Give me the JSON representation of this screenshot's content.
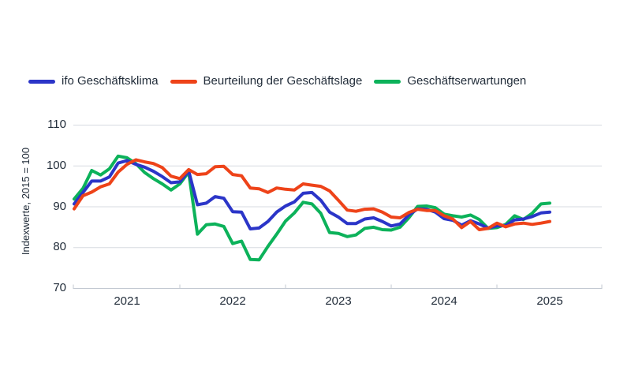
{
  "chart_data": {
    "type": "line",
    "title": "",
    "ylabel": "Indexwerte, 2015 = 100",
    "ylim": [
      70,
      110
    ],
    "yticks": [
      110,
      100,
      90,
      80,
      70
    ],
    "xtick_year_labels": [
      "2021",
      "2022",
      "2023",
      "2024",
      "2025"
    ],
    "grid": "horizontal-only",
    "legend_position": "top-left",
    "background": "#ffffff",
    "text_color": "#222d3a",
    "gridline_color": "#d7dbe1",
    "axis_color": "#c3c9d2",
    "x": [
      "2021-01",
      "2021-02",
      "2021-03",
      "2021-04",
      "2021-05",
      "2021-06",
      "2021-07",
      "2021-08",
      "2021-09",
      "2021-10",
      "2021-11",
      "2021-12",
      "2022-01",
      "2022-02",
      "2022-03",
      "2022-04",
      "2022-05",
      "2022-06",
      "2022-07",
      "2022-08",
      "2022-09",
      "2022-10",
      "2022-11",
      "2022-12",
      "2023-01",
      "2023-02",
      "2023-03",
      "2023-04",
      "2023-05",
      "2023-06",
      "2023-07",
      "2023-08",
      "2023-09",
      "2023-10",
      "2023-11",
      "2023-12",
      "2024-01",
      "2024-02",
      "2024-03",
      "2024-04",
      "2024-05",
      "2024-06",
      "2024-07",
      "2024-08",
      "2024-09",
      "2024-10",
      "2024-11",
      "2024-12",
      "2025-01",
      "2025-02",
      "2025-03",
      "2025-04",
      "2025-05",
      "2025-06",
      "2025-07"
    ],
    "series": [
      {
        "name": "ifo Geschäftsklima",
        "color": "#2b35c8",
        "values": [
          90.6,
          93.4,
          96.2,
          96.2,
          97.2,
          100.6,
          101.2,
          100.3,
          99.6,
          98.6,
          97.3,
          95.8,
          96.0,
          98.7,
          90.4,
          90.8,
          92.4,
          92.0,
          88.7,
          88.6,
          84.5,
          84.7,
          86.3,
          88.6,
          90.1,
          91.1,
          93.2,
          93.4,
          91.5,
          88.6,
          87.4,
          85.8,
          85.8,
          86.9,
          87.2,
          86.3,
          85.2,
          85.7,
          87.9,
          89.4,
          89.3,
          88.6,
          87.0,
          86.6,
          85.4,
          86.5,
          85.7,
          84.7,
          85.2,
          85.3,
          86.7,
          86.9,
          87.5,
          88.4,
          88.6
        ]
      },
      {
        "name": "Beurteilung der Geschäftslage",
        "color": "#ee4319",
        "values": [
          89.4,
          92.6,
          93.5,
          94.8,
          95.5,
          98.4,
          100.3,
          101.4,
          100.9,
          100.5,
          99.5,
          97.4,
          96.8,
          99.0,
          97.8,
          98.0,
          99.7,
          99.8,
          97.8,
          97.5,
          94.5,
          94.3,
          93.4,
          94.5,
          94.2,
          94.0,
          95.5,
          95.2,
          94.9,
          93.8,
          91.5,
          89.1,
          88.8,
          89.3,
          89.4,
          88.6,
          87.4,
          87.2,
          88.5,
          89.3,
          89.0,
          89.0,
          87.7,
          86.9,
          84.8,
          86.3,
          84.3,
          84.6,
          85.9,
          85.0,
          85.7,
          85.9,
          85.6,
          85.9,
          86.3
        ]
      },
      {
        "name": "Geschäftserwartungen",
        "color": "#0cb25a",
        "values": [
          91.8,
          94.4,
          98.8,
          97.7,
          99.2,
          102.3,
          101.9,
          100.5,
          98.3,
          96.8,
          95.5,
          94.0,
          95.5,
          98.4,
          83.2,
          85.5,
          85.7,
          85.1,
          80.9,
          81.5,
          77.0,
          76.9,
          80.2,
          83.2,
          86.4,
          88.4,
          91.0,
          90.6,
          88.3,
          83.6,
          83.4,
          82.6,
          83.0,
          84.6,
          84.9,
          84.3,
          84.2,
          84.9,
          87.2,
          90.0,
          90.1,
          89.7,
          88.1,
          87.7,
          87.4,
          87.9,
          86.8,
          84.6,
          84.8,
          85.6,
          87.7,
          86.8,
          88.3,
          90.6,
          90.8
        ]
      }
    ]
  }
}
